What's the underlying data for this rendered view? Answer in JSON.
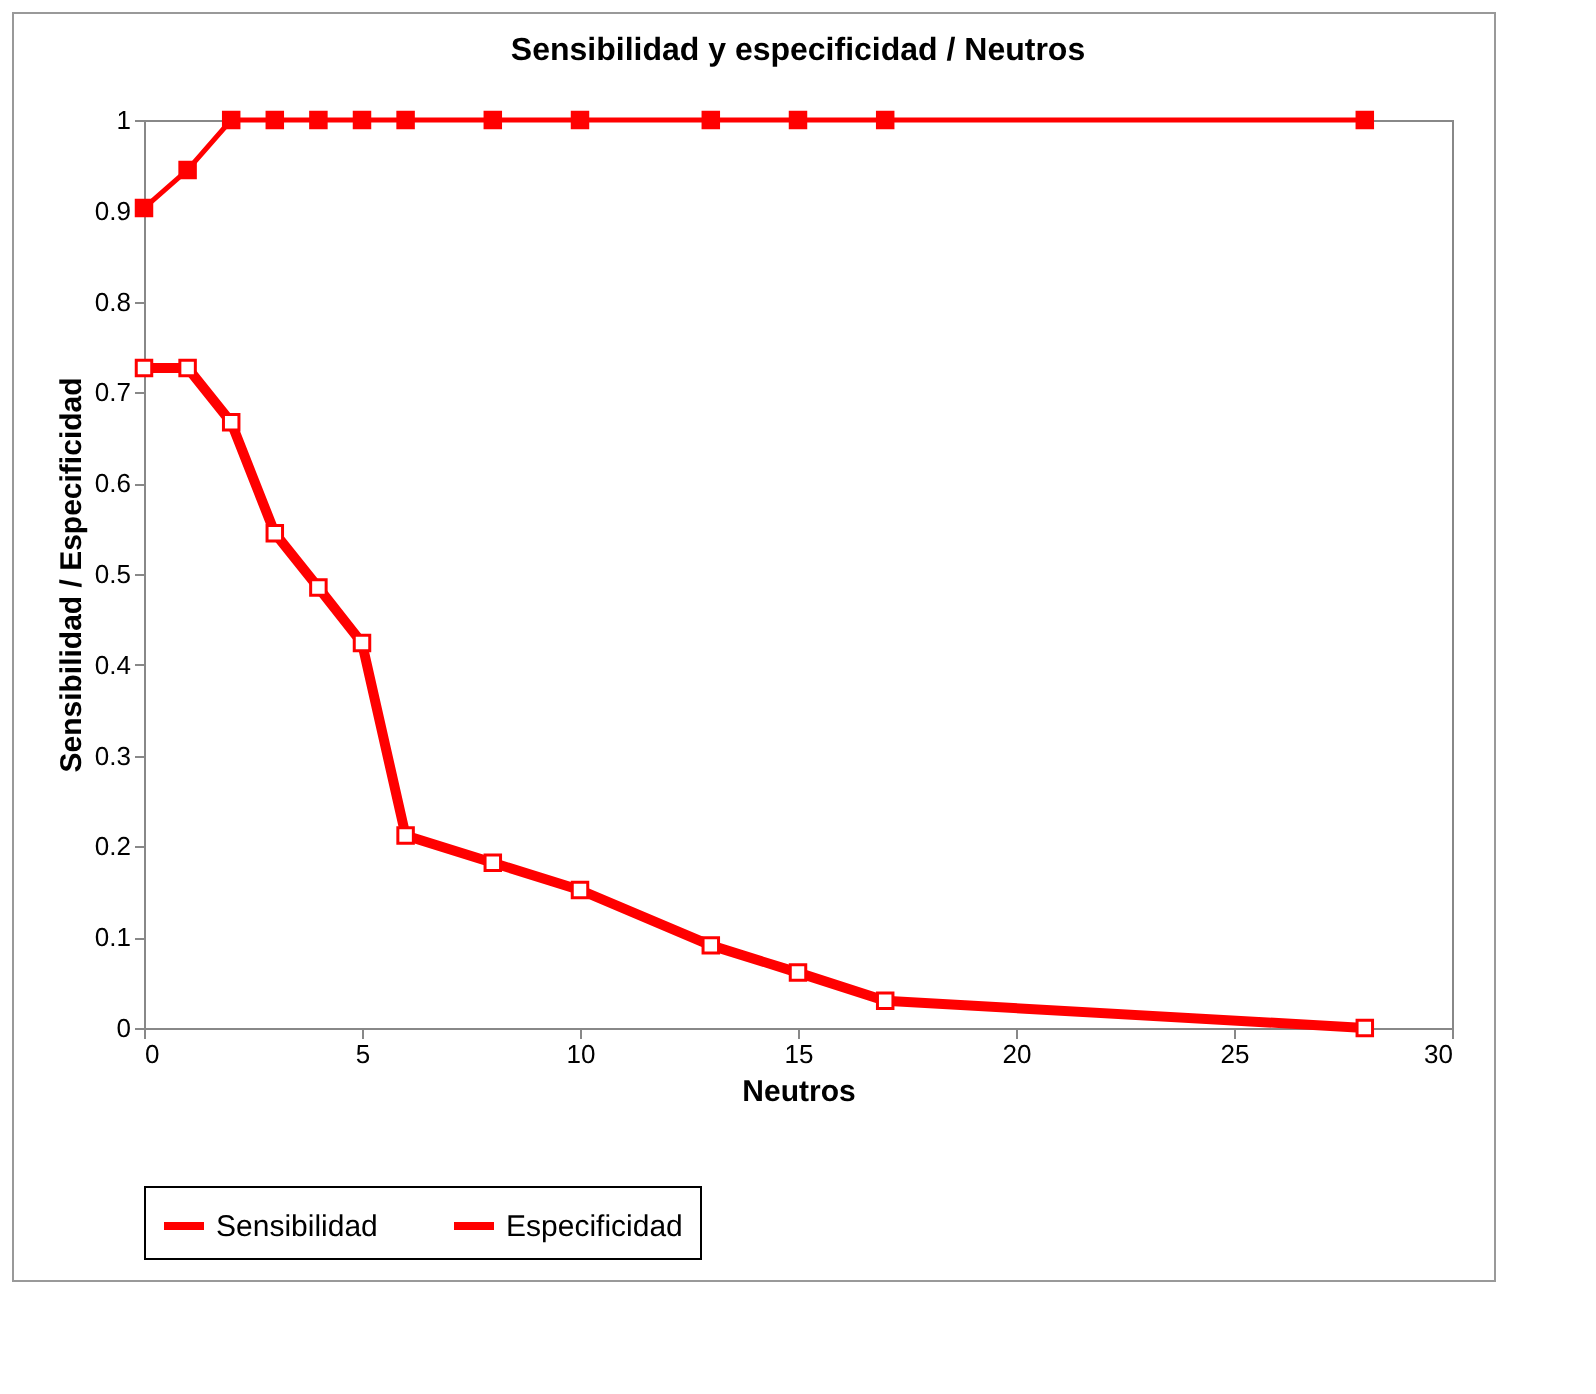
{
  "chart_data": {
    "type": "line",
    "title": "Sensibilidad y especificidad / Neutros",
    "xlabel": "Neutros",
    "ylabel": "Sensibilidad / Especificidad",
    "x": [
      0,
      1,
      2,
      3,
      4,
      5,
      6,
      8,
      10,
      13,
      15,
      17,
      28
    ],
    "series": [
      {
        "name": "Sensibilidad",
        "color": "#ff0000",
        "values": [
          0.727,
          0.727,
          0.667,
          0.545,
          0.485,
          0.424,
          0.212,
          0.182,
          0.152,
          0.091,
          0.061,
          0.03,
          0
        ]
      },
      {
        "name": "Especificidad",
        "color": "#ff0000",
        "values": [
          0.903,
          0.945,
          1,
          1,
          1,
          1,
          1,
          1,
          1,
          1,
          1,
          1,
          1
        ]
      }
    ],
    "xlim": [
      0,
      30
    ],
    "xticks": [
      0,
      5,
      10,
      15,
      20,
      25,
      30
    ],
    "ylim": [
      0,
      1
    ],
    "yticks": [
      0,
      0.1,
      0.2,
      0.3,
      0.4,
      0.5,
      0.6,
      0.7,
      0.8,
      0.9,
      1
    ],
    "grid": false,
    "legend": "bottom",
    "marker": "square",
    "line_style": "solid"
  }
}
